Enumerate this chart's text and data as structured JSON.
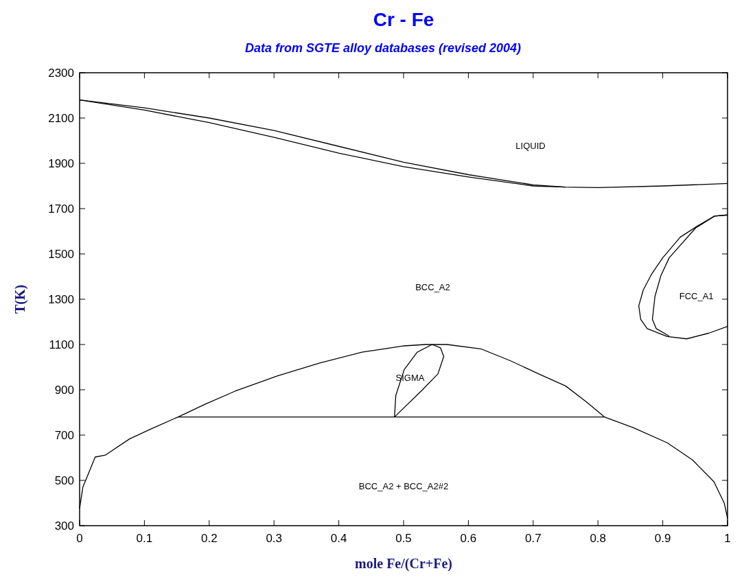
{
  "chart_data": {
    "type": "line",
    "title": "Cr - Fe",
    "subtitle": "Data from SGTE alloy databases (revised 2004)",
    "xlabel": "mole Fe/(Cr+Fe)",
    "ylabel": "T(K)",
    "xlim": [
      0,
      1
    ],
    "ylim": [
      300,
      2300
    ],
    "xticks": [
      0,
      0.1,
      0.2,
      0.3,
      0.4,
      0.5,
      0.6,
      0.7,
      0.8,
      0.9,
      1
    ],
    "yticks": [
      300,
      500,
      700,
      900,
      1100,
      1300,
      1500,
      1700,
      1900,
      2100,
      2300
    ],
    "grid": false,
    "marker": "none",
    "line_style": "solid",
    "series": [
      {
        "color": "#000000",
        "x": [
          0,
          0.1,
          0.2,
          0.3,
          0.4,
          0.5,
          0.6,
          0.7,
          0.75,
          0.8,
          0.9,
          1
        ],
        "values": [
          2180,
          2145,
          2100,
          2045,
          1975,
          1905,
          1850,
          1805,
          1795,
          1793,
          1800,
          1811
        ]
      },
      {
        "color": "#000000",
        "x": [
          0,
          0.1,
          0.2,
          0.3,
          0.4,
          0.5,
          0.6,
          0.7,
          0.75
        ],
        "values": [
          2180,
          2135,
          2080,
          2015,
          1945,
          1885,
          1840,
          1800,
          1795
        ]
      },
      {
        "color": "#000000",
        "x": [
          1,
          0.98,
          0.954,
          0.927,
          0.9,
          0.883,
          0.87,
          0.863,
          0.866,
          0.876,
          0.907,
          0.937,
          0.971,
          1
        ],
        "values": [
          1672,
          1667,
          1624,
          1574,
          1483,
          1412,
          1341,
          1271,
          1211,
          1170,
          1135,
          1125,
          1150,
          1180
        ]
      },
      {
        "color": "#000000",
        "x": [
          1,
          0.98,
          0.951,
          0.91,
          0.897,
          0.888,
          0.884,
          0.89,
          0.91
        ],
        "values": [
          1672,
          1667,
          1615,
          1483,
          1403,
          1312,
          1211,
          1170,
          1137
        ]
      },
      {
        "color": "#000000",
        "x": [
          0,
          0.005,
          0.024,
          0.04,
          0.077,
          0.11,
          0.152,
          0.81,
          0.855,
          0.907,
          0.946,
          0.979,
          0.995,
          1
        ],
        "values": [
          376,
          470,
          603,
          612,
          683,
          727,
          780,
          780,
          732,
          666,
          590,
          494,
          399,
          332
        ]
      },
      {
        "color": "#000000",
        "x": [
          0.152,
          0.194,
          0.24,
          0.305,
          0.37,
          0.436,
          0.501,
          0.534,
          0.567,
          0.619,
          0.665,
          0.711,
          0.75,
          0.782,
          0.81
        ],
        "values": [
          780,
          837,
          894,
          961,
          1018,
          1066,
          1094,
          1100,
          1100,
          1081,
          1028,
          967,
          917,
          847,
          780
        ]
      },
      {
        "color": "#000000",
        "x": [
          0.486,
          0.488,
          0.501,
          0.521,
          0.544
        ],
        "values": [
          780,
          875,
          989,
          1066,
          1100
        ]
      },
      {
        "color": "#000000",
        "x": [
          0.544,
          0.557,
          0.562,
          0.553,
          0.527,
          0.486
        ],
        "values": [
          1100,
          1085,
          1047,
          970,
          894,
          780
        ]
      }
    ],
    "annotations": [
      "LIQUID",
      "BCC_A2",
      "FCC_A1",
      "SIGMA",
      "BCC_A2 + BCC_A2#2"
    ]
  }
}
